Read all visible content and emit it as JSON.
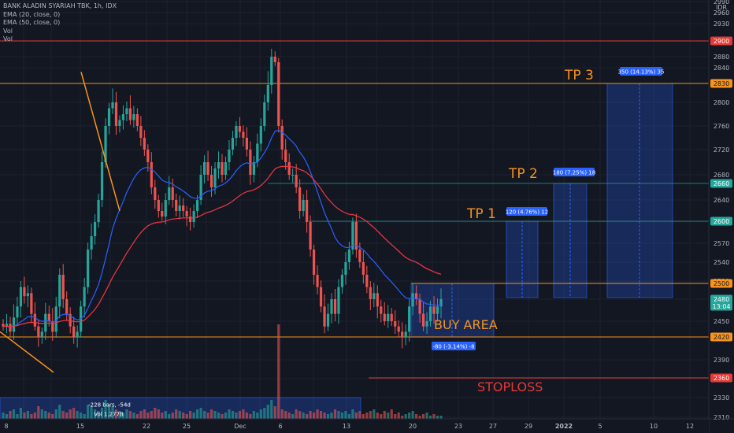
{
  "legend": {
    "title": "BANK ALADIN SYARIAH TBK, 1h, IDX",
    "ema20": "EMA (20, close, 0)",
    "ema50": "EMA (50, close, 0)",
    "vol1": "Vol",
    "vol2": "Vol"
  },
  "colors": {
    "background": "#131722",
    "up": "#26a69a",
    "down": "#ef5350",
    "ema20": "#2962ff",
    "ema50": "#f23645",
    "orange": "#f7931a",
    "red_line": "#e53935",
    "blue_box": "#2962ff"
  },
  "chart_data": {
    "type": "candlestick",
    "symbol": "BANK ALADIN SYARIAH TBK",
    "interval": "1h",
    "exchange": "IDX",
    "currency": "IDR",
    "price_axis": {
      "currency_label": "IDR",
      "ylim": [
        2305,
        2990
      ],
      "ticks": [
        2310,
        2330,
        2360,
        2390,
        2420,
        2450,
        2480,
        2510,
        2540,
        2570,
        2600,
        2640,
        2680,
        2720,
        2760,
        2800,
        2840,
        2880,
        2930,
        2960,
        2990
      ]
    },
    "time_axis_labels": [
      "8",
      "15",
      "22",
      "25",
      "Dec",
      "6",
      "13",
      "20",
      "23",
      "27",
      "29",
      "2022",
      "5",
      "10",
      "12"
    ],
    "price_tags": [
      {
        "value": "2900",
        "kind": "red"
      },
      {
        "value": "2830",
        "kind": "orange"
      },
      {
        "value": "2660",
        "kind": "teal"
      },
      {
        "value": "2600",
        "kind": "teal"
      },
      {
        "value": "2500",
        "kind": "orange"
      },
      {
        "value": "2480",
        "kind": "last"
      },
      {
        "value": "13:04",
        "kind": "countdown"
      },
      {
        "value": "2420",
        "kind": "orange"
      },
      {
        "value": "2360",
        "kind": "red"
      }
    ],
    "horizontal_levels": [
      {
        "price": 2900,
        "color": "red"
      },
      {
        "price": 2830,
        "color": "orange"
      },
      {
        "price": 2660,
        "color": "teal"
      },
      {
        "price": 2600,
        "color": "teal"
      },
      {
        "price": 2500,
        "color": "orange"
      },
      {
        "price": 2420,
        "color": "orange"
      },
      {
        "price": 2360,
        "color": "red"
      }
    ],
    "annotations": [
      {
        "text": "TP 3",
        "price": 2830
      },
      {
        "text": "TP 2",
        "price": 2660
      },
      {
        "text": "TP 1",
        "price": 2600
      },
      {
        "text": "BUY AREA",
        "price": 2460
      },
      {
        "text": "STOPLOSS",
        "price": 2360
      }
    ],
    "range_labels": [
      {
        "text": "120 (4.76%) 12"
      },
      {
        "text": "180 (7.25%) 18"
      },
      {
        "text": "350 (14.13%) 35"
      },
      {
        "text": "-80 (-3.14%) -8"
      },
      {
        "text": "-228 bars, -54d"
      },
      {
        "text": "Vol 1.277B"
      }
    ],
    "close_series": [
      2440,
      2445,
      2430,
      2455,
      2470,
      2500,
      2485,
      2490,
      2460,
      2440,
      2420,
      2430,
      2460,
      2450,
      2430,
      2470,
      2520,
      2480,
      2460,
      2440,
      2420,
      2430,
      2470,
      2500,
      2560,
      2580,
      2600,
      2640,
      2700,
      2760,
      2790,
      2800,
      2760,
      2770,
      2780,
      2790,
      2770,
      2780,
      2760,
      2740,
      2720,
      2700,
      2660,
      2640,
      2620,
      2610,
      2640,
      2660,
      2640,
      2620,
      2630,
      2620,
      2610,
      2600,
      2620,
      2640,
      2680,
      2700,
      2680,
      2660,
      2690,
      2700,
      2680,
      2700,
      2720,
      2740,
      2760,
      2750,
      2740,
      2720,
      2680,
      2700,
      2730,
      2760,
      2800,
      2820,
      2880,
      2860,
      2760,
      2720,
      2700,
      2680,
      2680,
      2660,
      2620,
      2640,
      2600,
      2560,
      2520,
      2500,
      2470,
      2440,
      2460,
      2480,
      2460,
      2500,
      2520,
      2540,
      2560,
      2600,
      2560,
      2540,
      2520,
      2500,
      2480,
      2490,
      2470,
      2460,
      2450,
      2460,
      2450,
      2440,
      2430,
      2420,
      2430,
      2470,
      2490,
      2480,
      2460,
      2440,
      2450,
      2470,
      2460,
      2470,
      2480
    ],
    "volume_series": [
      4,
      3,
      5,
      6,
      3,
      7,
      4,
      5,
      3,
      4,
      8,
      6,
      5,
      4,
      3,
      6,
      9,
      5,
      4,
      6,
      7,
      5,
      4,
      3,
      9,
      8,
      6,
      5,
      7,
      12,
      9,
      8,
      6,
      5,
      4,
      6,
      5,
      4,
      3,
      5,
      6,
      4,
      5,
      7,
      6,
      4,
      5,
      3,
      4,
      6,
      5,
      4,
      3,
      5,
      4,
      6,
      7,
      5,
      4,
      6,
      5,
      4,
      3,
      4,
      6,
      5,
      4,
      5,
      6,
      4,
      3,
      5,
      4,
      6,
      7,
      9,
      12,
      8,
      60,
      6,
      5,
      4,
      3,
      6,
      5,
      4,
      3,
      5,
      4,
      6,
      5,
      4,
      3,
      4,
      6,
      5,
      4,
      5,
      3,
      6,
      4,
      5,
      3,
      4,
      5,
      6,
      4,
      3,
      5,
      4,
      6,
      3,
      4,
      2,
      3,
      4,
      5,
      3,
      2,
      3,
      4,
      2,
      3,
      2,
      2
    ]
  }
}
